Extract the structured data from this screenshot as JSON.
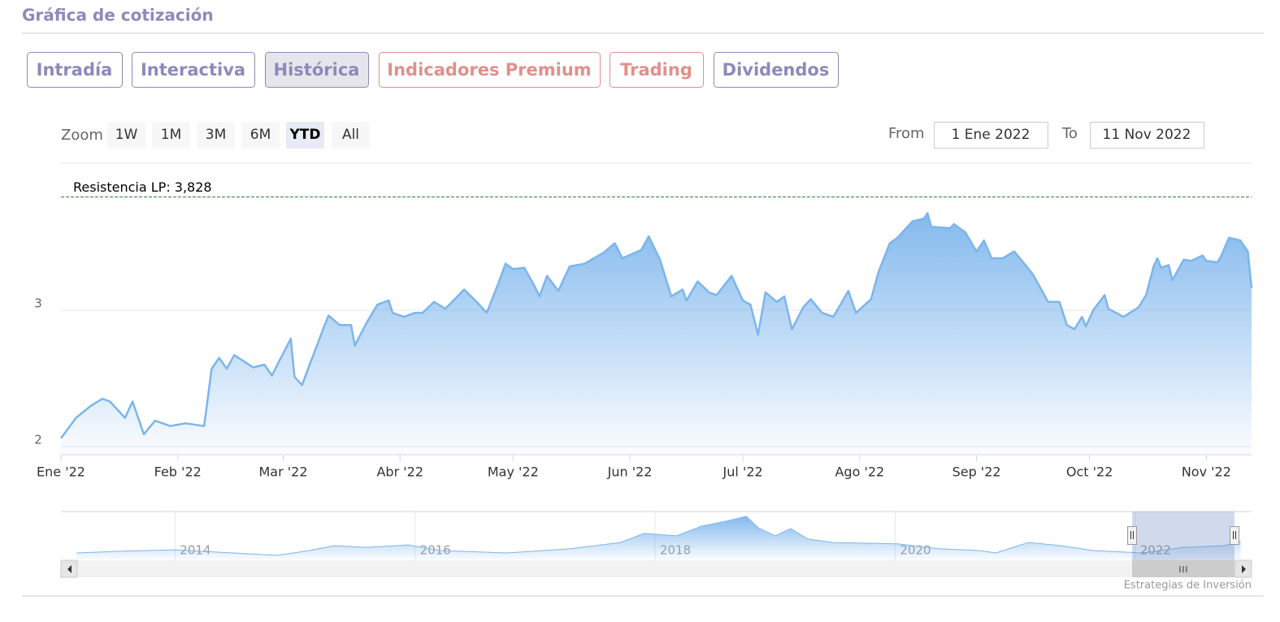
{
  "header": {
    "title": "Gráfica de cotización"
  },
  "tabs": {
    "items": [
      "Intradía",
      "Interactiva",
      "Histórica",
      "Indicadores Premium",
      "Trading",
      "Dividendos"
    ],
    "active": 2
  },
  "zoom": {
    "label": "Zoom",
    "buttons": [
      "1W",
      "1M",
      "3M",
      "6M",
      "YTD",
      "All"
    ],
    "active": 4
  },
  "range": {
    "from_label": "From",
    "from": "1 Ene 2022",
    "to_label": "To",
    "to": "11 Nov 2022"
  },
  "chart_data": [
    {
      "type": "area",
      "color": "#7cb5ec",
      "x": [
        0,
        4,
        8,
        11,
        13,
        17,
        19,
        22,
        25,
        29,
        33,
        38,
        40,
        42,
        44,
        46,
        51,
        54,
        56,
        58,
        61,
        62,
        64,
        66,
        70,
        71,
        74,
        77,
        78,
        81,
        84,
        87,
        88,
        91,
        94,
        96,
        99,
        102,
        107,
        110,
        113,
        116,
        118,
        120,
        123,
        126,
        127,
        129,
        132,
        135,
        139,
        144,
        147,
        149,
        154,
        156,
        159,
        162,
        165,
        166,
        169,
        172,
        174,
        178,
        181,
        183,
        185,
        187,
        190,
        192,
        194,
        197,
        199,
        202,
        205,
        209,
        211,
        215,
        217,
        220,
        222,
        226,
        229,
        230,
        231,
        236,
        237,
        240,
        243,
        245,
        247,
        250,
        253,
        256,
        258,
        262,
        265,
        267,
        269,
        271,
        272,
        274,
        277,
        278,
        282,
        286,
        288,
        290,
        291,
        292,
        294,
        295,
        298,
        300,
        303,
        304,
        307,
        308,
        310,
        313,
        315,
        316
      ],
      "values": [
        2.06,
        2.21,
        2.3,
        2.35,
        2.33,
        2.21,
        2.33,
        2.09,
        2.19,
        2.15,
        2.17,
        2.15,
        2.57,
        2.65,
        2.57,
        2.67,
        2.58,
        2.6,
        2.52,
        2.63,
        2.79,
        2.51,
        2.45,
        2.6,
        2.89,
        2.96,
        2.89,
        2.89,
        2.74,
        2.9,
        3.04,
        3.07,
        2.98,
        2.95,
        2.98,
        2.98,
        3.06,
        3.01,
        3.15,
        3.07,
        2.98,
        3.19,
        3.34,
        3.3,
        3.31,
        3.16,
        3.1,
        3.25,
        3.14,
        3.32,
        3.34,
        3.42,
        3.49,
        3.38,
        3.44,
        3.54,
        3.37,
        3.1,
        3.15,
        3.07,
        3.21,
        3.13,
        3.11,
        3.25,
        3.07,
        3.04,
        2.82,
        3.13,
        3.06,
        3.1,
        2.86,
        3.02,
        3.08,
        2.98,
        2.95,
        3.14,
        2.98,
        3.08,
        3.28,
        3.49,
        3.53,
        3.65,
        3.67,
        3.71,
        3.61,
        3.6,
        3.63,
        3.57,
        3.43,
        3.51,
        3.38,
        3.38,
        3.43,
        3.33,
        3.26,
        3.06,
        3.06,
        2.89,
        2.86,
        2.95,
        2.88,
        3.0,
        3.11,
        3.01,
        2.95,
        3.02,
        3.11,
        3.32,
        3.38,
        3.31,
        3.33,
        3.22,
        3.37,
        3.36,
        3.4,
        3.36,
        3.35,
        3.4,
        3.53,
        3.51,
        3.43,
        3.16
      ],
      "xlim": [
        0,
        316
      ],
      "xticks": [
        {
          "value": 0,
          "label": "Ene '22"
        },
        {
          "value": 31,
          "label": "Feb '22"
        },
        {
          "value": 59,
          "label": "Mar '22"
        },
        {
          "value": 90,
          "label": "Abr '22"
        },
        {
          "value": 120,
          "label": "May '22"
        },
        {
          "value": 151,
          "label": "Jun '22"
        },
        {
          "value": 181,
          "label": "Jul '22"
        },
        {
          "value": 212,
          "label": "Ago '22"
        },
        {
          "value": 243,
          "label": "Sep '22"
        },
        {
          "value": 273,
          "label": "Oct '22"
        },
        {
          "value": 304,
          "label": "Nov '22"
        }
      ],
      "ylim": [
        1.94,
        4.07
      ],
      "yticks": [
        2,
        3
      ],
      "grid": true,
      "annotations": [
        {
          "value": 3.828,
          "label": "Resistencia LP: 3,828",
          "color": "#2e7d32"
        }
      ]
    },
    {
      "type": "area",
      "color": "#7cb5ec",
      "x": [
        2013.18,
        2013.56,
        2014,
        2014.58,
        2014.85,
        2015.12,
        2015.33,
        2015.6,
        2015.94,
        2016.21,
        2016.76,
        2017.3,
        2017.71,
        2017.91,
        2018.18,
        2018.39,
        2018.59,
        2018.76,
        2018.86,
        2019.0,
        2019.13,
        2019.27,
        2019.48,
        2020.02,
        2020.36,
        2020.7,
        2020.84,
        2021.11,
        2021.38,
        2021.65,
        2022.06,
        2022.4,
        2022.74,
        2022.88
      ],
      "values": [
        2.1,
        2.6,
        3.0,
        1.9,
        1.4,
        2.8,
        4.2,
        3.7,
        4.4,
        2.8,
        2.1,
        3.3,
        5.1,
        7.7,
        7.0,
        9.8,
        11.2,
        12.6,
        9.3,
        7.0,
        9.1,
        6.1,
        5.1,
        4.7,
        3.3,
        2.8,
        2.1,
        5.1,
        4.2,
        2.8,
        2.1,
        3.7,
        4.2,
        5.4
      ],
      "xlim": [
        2013.05,
        2022.97
      ],
      "xticks": [
        2014,
        2016,
        2018,
        2020,
        2022
      ],
      "ylim": [
        0,
        13.5
      ],
      "grid": true
    }
  ],
  "credit": "Estrategias de Inversión"
}
